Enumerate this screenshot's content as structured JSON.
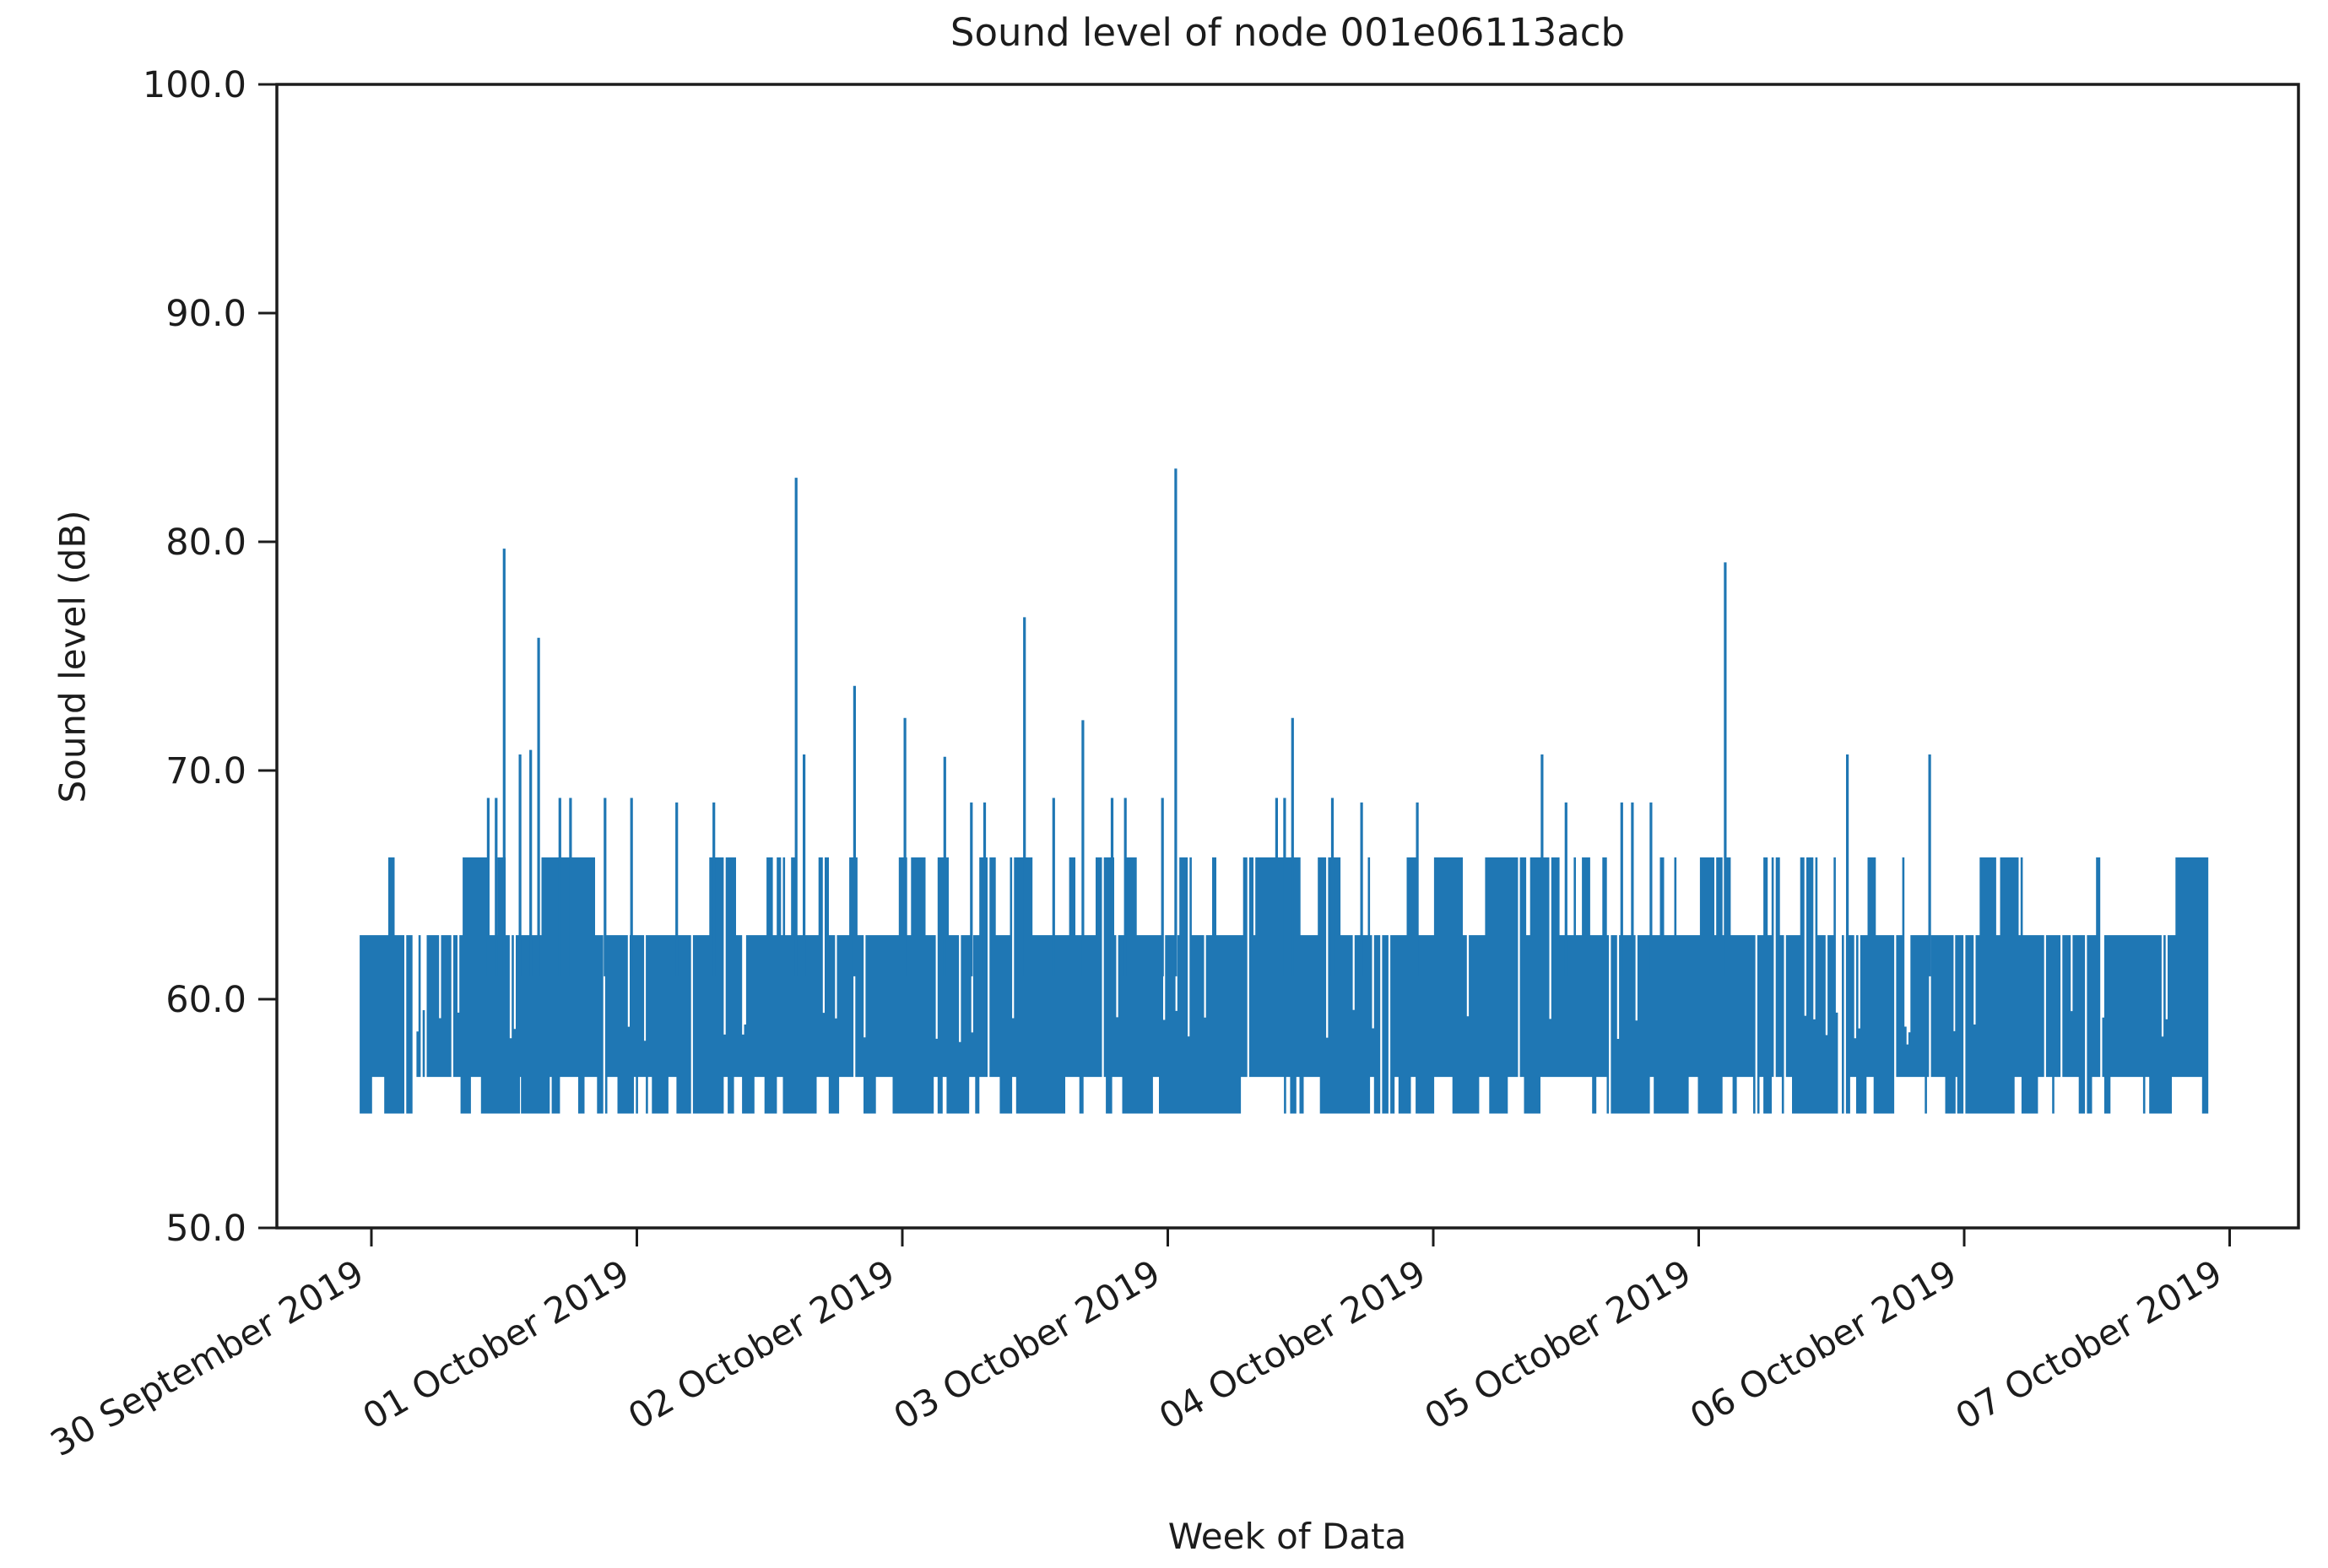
{
  "figure": {
    "title": "Sound level of node 001e06113acb",
    "x_axis_label": "Week of Data",
    "y_axis_label": "Sound level (dB)"
  },
  "chart_data": {
    "type": "line",
    "title": "Sound level of node 001e06113acb",
    "xlabel": "Week of Data",
    "ylabel": "Sound level (dB)",
    "legend": null,
    "grid": false,
    "line_color": "#1f77b4",
    "axis_color": "#1c1c1c",
    "text_color": "#1c1c1c",
    "ylim": [
      50.0,
      100.0
    ],
    "yticks": [
      {
        "value": 50,
        "label": "50.0"
      },
      {
        "value": 60,
        "label": "60.0"
      },
      {
        "value": 70,
        "label": "70.0"
      },
      {
        "value": 80,
        "label": "80.0"
      },
      {
        "value": 90,
        "label": "90.0"
      },
      {
        "value": 100,
        "label": "100.0"
      }
    ],
    "xticks": [
      {
        "day": 0,
        "label": "30 September 2019"
      },
      {
        "day": 1,
        "label": "01 October 2019"
      },
      {
        "day": 2,
        "label": "02 October 2019"
      },
      {
        "day": 3,
        "label": "03 October 2019"
      },
      {
        "day": 4,
        "label": "04 October 2019"
      },
      {
        "day": 5,
        "label": "05 October 2019"
      },
      {
        "day": 6,
        "label": "06 October 2019"
      },
      {
        "day": 7,
        "label": "07 October 2019"
      }
    ],
    "x_tick_rotation_deg": -30,
    "data_span_days": [
      -0.04,
      6.92
    ],
    "min_db": 55.0,
    "max_db": 83.2,
    "quantized_levels_db": {
      "bottoms": [
        55.0,
        56.6
      ],
      "tops": [
        62.8,
        66.2
      ],
      "spike_levels": [
        68.6,
        68.8,
        70.6,
        70.7,
        70.9,
        72.2,
        72.3,
        73.7,
        75.8,
        76.7,
        79.1,
        79.7,
        82.8,
        83.2
      ]
    },
    "band_segments": [
      {
        "start_day": -0.04,
        "end_day": 0.12,
        "p_top_66": 0.07,
        "p_bottom_55": 0.9,
        "sparsity": 0.03
      },
      {
        "start_day": 0.12,
        "end_day": 0.34,
        "p_top_66": 0.04,
        "p_bottom_55": 0.2,
        "sparsity": 0.3
      },
      {
        "start_day": 0.34,
        "end_day": 0.56,
        "p_top_66": 0.45,
        "p_bottom_55": 0.75,
        "sparsity": 0.05
      },
      {
        "start_day": 0.56,
        "end_day": 0.8,
        "p_top_66": 0.55,
        "p_bottom_55": 0.5,
        "sparsity": 0.06
      },
      {
        "start_day": 0.8,
        "end_day": 1.03,
        "p_top_66": 0.15,
        "p_bottom_55": 0.3,
        "sparsity": 0.2
      },
      {
        "start_day": 1.03,
        "end_day": 1.2,
        "p_top_66": 0.25,
        "p_bottom_55": 0.85,
        "sparsity": 0.05
      },
      {
        "start_day": 1.2,
        "end_day": 1.65,
        "p_top_66": 0.68,
        "p_bottom_55": 0.75,
        "sparsity": 0.04
      },
      {
        "start_day": 1.65,
        "end_day": 1.96,
        "p_top_66": 0.18,
        "p_bottom_55": 0.45,
        "sparsity": 0.12
      },
      {
        "start_day": 1.96,
        "end_day": 2.14,
        "p_top_66": 0.6,
        "p_bottom_55": 0.6,
        "sparsity": 0.05
      },
      {
        "start_day": 2.14,
        "end_day": 2.44,
        "p_top_66": 0.3,
        "p_bottom_55": 0.6,
        "sparsity": 0.1
      },
      {
        "start_day": 2.44,
        "end_day": 2.64,
        "p_top_66": 0.7,
        "p_bottom_55": 0.85,
        "sparsity": 0.04
      },
      {
        "start_day": 2.64,
        "end_day": 2.94,
        "p_top_66": 0.35,
        "p_bottom_55": 0.45,
        "sparsity": 0.12
      },
      {
        "start_day": 2.94,
        "end_day": 3.28,
        "p_top_66": 0.15,
        "p_bottom_55": 0.9,
        "sparsity": 0.04
      },
      {
        "start_day": 3.28,
        "end_day": 3.5,
        "p_top_66": 0.75,
        "p_bottom_55": 0.25,
        "sparsity": 0.05
      },
      {
        "start_day": 3.5,
        "end_day": 3.75,
        "p_top_66": 0.3,
        "p_bottom_55": 0.8,
        "sparsity": 0.1
      },
      {
        "start_day": 3.75,
        "end_day": 3.93,
        "p_top_66": 0.35,
        "p_bottom_55": 0.6,
        "sparsity": 0.1
      },
      {
        "start_day": 3.93,
        "end_day": 4.41,
        "p_top_66": 0.72,
        "p_bottom_55": 0.45,
        "sparsity": 0.03
      },
      {
        "start_day": 4.41,
        "end_day": 4.65,
        "p_top_66": 0.3,
        "p_bottom_55": 0.7,
        "sparsity": 0.1
      },
      {
        "start_day": 4.65,
        "end_day": 4.97,
        "p_top_66": 0.22,
        "p_bottom_55": 0.85,
        "sparsity": 0.05
      },
      {
        "start_day": 4.97,
        "end_day": 5.14,
        "p_top_66": 0.5,
        "p_bottom_55": 0.5,
        "sparsity": 0.08
      },
      {
        "start_day": 5.14,
        "end_day": 5.42,
        "p_top_66": 0.35,
        "p_bottom_55": 0.7,
        "sparsity": 0.08
      },
      {
        "start_day": 5.42,
        "end_day": 5.64,
        "p_top_66": 0.12,
        "p_bottom_55": 0.4,
        "sparsity": 0.25
      },
      {
        "start_day": 5.64,
        "end_day": 5.97,
        "p_top_66": 0.25,
        "p_bottom_55": 0.6,
        "sparsity": 0.1
      },
      {
        "start_day": 5.97,
        "end_day": 6.22,
        "p_top_66": 0.4,
        "p_bottom_55": 0.8,
        "sparsity": 0.05
      },
      {
        "start_day": 6.22,
        "end_day": 6.47,
        "p_top_66": 0.3,
        "p_bottom_55": 0.5,
        "sparsity": 0.15
      },
      {
        "start_day": 6.47,
        "end_day": 6.8,
        "p_top_66": 0.28,
        "p_bottom_55": 0.7,
        "sparsity": 0.1
      },
      {
        "start_day": 6.8,
        "end_day": 6.92,
        "p_top_66": 0.9,
        "p_bottom_55": 0.2,
        "sparsity": 0.0
      }
    ],
    "spikes": [
      {
        "day": 0.44,
        "db": 68.8
      },
      {
        "day": 0.47,
        "db": 68.8
      },
      {
        "day": 0.5,
        "db": 79.7
      },
      {
        "day": 0.56,
        "db": 70.7
      },
      {
        "day": 0.6,
        "db": 70.9
      },
      {
        "day": 0.63,
        "db": 75.8
      },
      {
        "day": 0.71,
        "db": 68.8
      },
      {
        "day": 0.75,
        "db": 68.8
      },
      {
        "day": 0.88,
        "db": 68.8
      },
      {
        "day": 0.98,
        "db": 68.8
      },
      {
        "day": 1.15,
        "db": 68.6
      },
      {
        "day": 1.29,
        "db": 68.6
      },
      {
        "day": 1.6,
        "db": 82.8
      },
      {
        "day": 1.63,
        "db": 70.7
      },
      {
        "day": 1.82,
        "db": 73.7
      },
      {
        "day": 2.01,
        "db": 72.3
      },
      {
        "day": 2.16,
        "db": 70.6
      },
      {
        "day": 2.26,
        "db": 68.6
      },
      {
        "day": 2.31,
        "db": 68.6
      },
      {
        "day": 2.46,
        "db": 76.7
      },
      {
        "day": 2.57,
        "db": 68.8
      },
      {
        "day": 2.68,
        "db": 72.2
      },
      {
        "day": 2.79,
        "db": 68.8
      },
      {
        "day": 2.84,
        "db": 68.8
      },
      {
        "day": 2.98,
        "db": 68.8
      },
      {
        "day": 3.03,
        "db": 83.2
      },
      {
        "day": 3.41,
        "db": 68.8
      },
      {
        "day": 3.44,
        "db": 68.8
      },
      {
        "day": 3.47,
        "db": 72.3
      },
      {
        "day": 3.62,
        "db": 68.8
      },
      {
        "day": 3.73,
        "db": 68.6
      },
      {
        "day": 3.94,
        "db": 68.6
      },
      {
        "day": 4.41,
        "db": 70.7
      },
      {
        "day": 4.5,
        "db": 68.6
      },
      {
        "day": 4.71,
        "db": 68.6
      },
      {
        "day": 4.75,
        "db": 68.6
      },
      {
        "day": 4.82,
        "db": 68.6
      },
      {
        "day": 5.1,
        "db": 79.1
      },
      {
        "day": 5.56,
        "db": 70.7
      },
      {
        "day": 5.87,
        "db": 70.7
      }
    ]
  }
}
